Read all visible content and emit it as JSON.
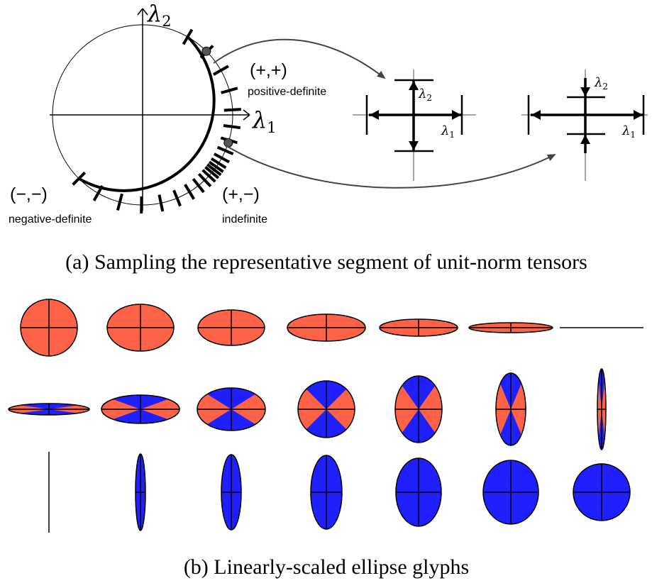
{
  "panel_a": {
    "axis_x_label": "λ",
    "axis_x_sub": "1",
    "axis_y_label": "λ",
    "axis_y_sub": "2",
    "pp_sign": "(+,+)",
    "pp_name": "positive-definite",
    "nn_sign": "(−,−)",
    "nn_name": "negative-definite",
    "pn_sign": "(+,−)",
    "pn_name": "indefinite",
    "glyph_pp_l1": "λ",
    "glyph_pp_l1_sub": "1",
    "glyph_pp_l2": "λ",
    "glyph_pp_l2_sub": "2",
    "glyph_pn_l1": "λ",
    "glyph_pn_l1_sub": "1",
    "glyph_pn_l2": "λ",
    "glyph_pn_l2_sub": "2",
    "caption": "(a)  Sampling the representative segment of unit-norm tensors"
  },
  "panel_b": {
    "positive_color": "#ff6347",
    "negative_color": "#2020ff",
    "caption": "(b)  Linearly-scaled ellipse glyphs"
  }
}
